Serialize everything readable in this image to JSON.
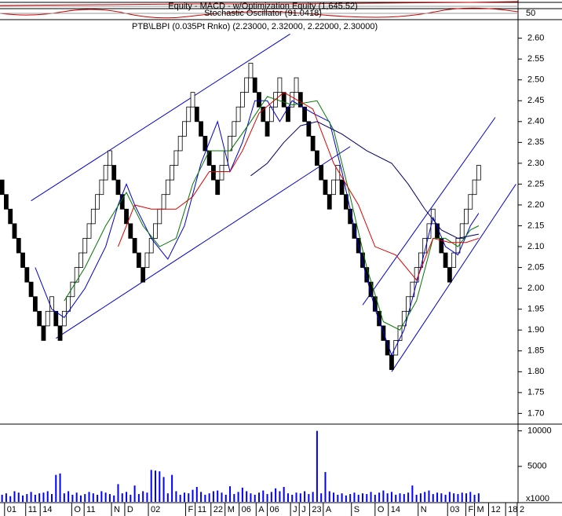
{
  "indicator_panels": [
    {
      "label": "Equity - MACD - w/Optimization Equity (1,645.52)"
    },
    {
      "label": "Stochastic Oscillator (91.0418)",
      "yticks": [
        50
      ]
    }
  ],
  "chart_data": [
    {
      "type": "renko",
      "title": "PTB\\LBPI (0.035Pt Rnko) (2.23000, 2.32000, 2.22000, 2.30000)",
      "up_color": "#ffffff",
      "down_color": "#000000",
      "xlim": [
        -0.5,
        124.5
      ],
      "ylim": [
        1.68,
        2.62
      ],
      "yticks": [
        {
          "value": 1.7,
          "label": "1.70"
        },
        {
          "value": 1.75,
          "label": "1.75"
        },
        {
          "value": 1.8,
          "label": "1.80"
        },
        {
          "value": 1.85,
          "label": "1.85"
        },
        {
          "value": 1.9,
          "label": "1.90"
        },
        {
          "value": 1.95,
          "label": "1.95"
        },
        {
          "value": 2,
          "label": "2.00"
        },
        {
          "value": 2.05,
          "label": "2.05"
        },
        {
          "value": 2.1,
          "label": "2.10"
        },
        {
          "value": 2.15,
          "label": "2.15"
        },
        {
          "value": 2.2,
          "label": "2.20"
        },
        {
          "value": 2.25,
          "label": "2.25"
        },
        {
          "value": 2.3,
          "label": "2.30"
        },
        {
          "value": 2.35,
          "label": "2.35"
        },
        {
          "value": 2.4,
          "label": "2.40"
        },
        {
          "value": 2.45,
          "label": "2.45"
        },
        {
          "value": 2.5,
          "label": "2.50"
        },
        {
          "value": 2.55,
          "label": "2.55"
        },
        {
          "value": 2.6,
          "label": "2.60"
        }
      ],
      "open": [
        2.26,
        2.225,
        2.19,
        2.155,
        2.12,
        2.085,
        2.05,
        2.015,
        1.98,
        1.945,
        1.91,
        1.91,
        1.945,
        1.945,
        1.91,
        1.91,
        1.945,
        1.98,
        2.015,
        2.05,
        2.085,
        2.12,
        2.155,
        2.19,
        2.225,
        2.26,
        2.295,
        2.295,
        2.26,
        2.225,
        2.19,
        2.155,
        2.12,
        2.085,
        2.05,
        2.05,
        2.085,
        2.12,
        2.155,
        2.19,
        2.225,
        2.26,
        2.295,
        2.33,
        2.365,
        2.4,
        2.435,
        2.435,
        2.4,
        2.365,
        2.33,
        2.295,
        2.26,
        2.26,
        2.295,
        2.33,
        2.365,
        2.4,
        2.435,
        2.47,
        2.505,
        2.505,
        2.47,
        2.435,
        2.4,
        2.4,
        2.435,
        2.47,
        2.47,
        2.435,
        2.435,
        2.47,
        2.47,
        2.435,
        2.4,
        2.365,
        2.33,
        2.295,
        2.26,
        2.225,
        2.225,
        2.26,
        2.26,
        2.225,
        2.19,
        2.155,
        2.12,
        2.085,
        2.05,
        2.015,
        1.98,
        1.945,
        1.91,
        1.875,
        1.84,
        1.84,
        1.875,
        1.91,
        1.945,
        1.98,
        2.015,
        2.05,
        2.085,
        2.12,
        2.155,
        2.155,
        2.12,
        2.085,
        2.05,
        2.05,
        2.085,
        2.12,
        2.155,
        2.19,
        2.225,
        2.26
      ],
      "close": [
        2.225,
        2.19,
        2.155,
        2.12,
        2.085,
        2.05,
        2.015,
        1.98,
        1.945,
        1.91,
        1.875,
        1.945,
        1.98,
        1.91,
        1.875,
        1.945,
        1.98,
        2.015,
        2.05,
        2.085,
        2.12,
        2.155,
        2.19,
        2.225,
        2.26,
        2.295,
        2.33,
        2.26,
        2.225,
        2.19,
        2.155,
        2.12,
        2.085,
        2.05,
        2.015,
        2.085,
        2.12,
        2.155,
        2.19,
        2.225,
        2.26,
        2.295,
        2.33,
        2.365,
        2.4,
        2.435,
        2.47,
        2.4,
        2.365,
        2.33,
        2.295,
        2.26,
        2.225,
        2.295,
        2.33,
        2.365,
        2.4,
        2.435,
        2.47,
        2.505,
        2.54,
        2.47,
        2.435,
        2.4,
        2.365,
        2.435,
        2.47,
        2.505,
        2.435,
        2.4,
        2.47,
        2.505,
        2.435,
        2.4,
        2.365,
        2.33,
        2.295,
        2.26,
        2.225,
        2.19,
        2.26,
        2.295,
        2.225,
        2.19,
        2.155,
        2.12,
        2.085,
        2.05,
        2.015,
        1.98,
        1.945,
        1.91,
        1.875,
        1.84,
        1.805,
        1.875,
        1.91,
        1.945,
        1.98,
        2.015,
        2.05,
        2.085,
        2.12,
        2.155,
        2.19,
        2.12,
        2.085,
        2.05,
        2.015,
        2.085,
        2.12,
        2.155,
        2.19,
        2.225,
        2.26,
        2.295
      ],
      "series": [
        {
          "color": "#0000cc",
          "x": [
            8,
            12,
            15,
            20,
            25,
            28,
            30,
            32,
            36,
            40,
            44,
            48,
            52,
            55,
            58,
            61,
            64,
            67,
            70,
            75,
            79,
            82,
            86,
            90,
            94,
            97,
            101,
            104,
            107,
            110,
            113,
            115
          ],
          "values": [
            2.05,
            1.95,
            1.93,
            2.0,
            2.1,
            2.2,
            2.25,
            2.2,
            2.12,
            2.07,
            2.15,
            2.3,
            2.4,
            2.28,
            2.35,
            2.45,
            2.45,
            2.4,
            2.45,
            2.42,
            2.4,
            2.28,
            2.1,
            1.95,
            1.84,
            1.9,
            2.05,
            2.17,
            2.1,
            2.08,
            2.15,
            2.18
          ]
        },
        {
          "color": "#007700",
          "x": [
            15,
            20,
            25,
            30,
            34,
            38,
            42,
            46,
            50,
            55,
            60,
            64,
            70,
            76,
            80,
            84,
            88,
            92,
            96,
            100,
            104,
            107,
            110,
            113,
            115
          ],
          "values": [
            1.97,
            2.05,
            2.15,
            2.23,
            2.15,
            2.1,
            2.12,
            2.25,
            2.33,
            2.33,
            2.4,
            2.46,
            2.44,
            2.45,
            2.38,
            2.22,
            2.05,
            1.92,
            1.9,
            1.97,
            2.12,
            2.12,
            2.1,
            2.14,
            2.15
          ]
        },
        {
          "color": "#dd0000",
          "x": [
            28,
            32,
            36,
            42,
            46,
            50,
            55,
            58,
            62,
            68,
            75,
            80,
            86,
            90,
            95,
            100,
            104,
            108,
            112,
            115
          ],
          "values": [
            2.1,
            2.2,
            2.19,
            2.19,
            2.22,
            2.28,
            2.28,
            2.33,
            2.42,
            2.47,
            2.43,
            2.3,
            2.2,
            2.1,
            2.08,
            2.02,
            2.12,
            2.11,
            2.11,
            2.12
          ]
        },
        {
          "color": "#000066",
          "x": [
            60,
            64,
            68,
            72,
            76,
            82,
            88,
            94,
            98,
            102,
            106,
            110,
            115
          ],
          "values": [
            2.27,
            2.3,
            2.35,
            2.39,
            2.4,
            2.37,
            2.33,
            2.3,
            2.25,
            2.19,
            2.14,
            2.12,
            2.13
          ]
        }
      ],
      "trendlines": [
        {
          "color": "#0000cc",
          "x": [
            7,
            69.5
          ],
          "values": [
            2.21,
            2.61
          ]
        },
        {
          "color": "#0000cc",
          "x": [
            13,
            84
          ],
          "values": [
            1.88,
            2.34
          ]
        },
        {
          "color": "#0000cc",
          "x": [
            87,
            119
          ],
          "values": [
            1.96,
            2.41
          ]
        },
        {
          "color": "#0000cc",
          "x": [
            94,
            124
          ],
          "values": [
            1.8,
            2.25
          ]
        }
      ]
    },
    {
      "type": "bar",
      "color": "#0000ff",
      "xlim": [
        -0.5,
        124.5
      ],
      "ylim": [
        0,
        10400
      ],
      "yticks": [
        5000,
        10000
      ],
      "y_unit_label": "x1000",
      "xticks": [
        {
          "value": 0.6,
          "label": "01"
        },
        {
          "value": 5.7,
          "label": "11"
        },
        {
          "value": 9.2,
          "label": "14"
        },
        {
          "value": 16.8,
          "label": "O"
        },
        {
          "value": 19.8,
          "label": "11"
        },
        {
          "value": 26.4,
          "label": "N"
        },
        {
          "value": 29.6,
          "label": "D"
        },
        {
          "value": 35.3,
          "label": "02"
        },
        {
          "value": 44.3,
          "label": "F"
        },
        {
          "value": 46.6,
          "label": "11"
        },
        {
          "value": 50.4,
          "label": "22"
        },
        {
          "value": 53.8,
          "label": "M"
        },
        {
          "value": 57.2,
          "label": "06"
        },
        {
          "value": 61.3,
          "label": "A"
        },
        {
          "value": 64,
          "label": "06"
        },
        {
          "value": 69.6,
          "label": "J"
        },
        {
          "value": 71.7,
          "label": "J"
        },
        {
          "value": 74.2,
          "label": "23"
        },
        {
          "value": 77.5,
          "label": "A"
        },
        {
          "value": 84.3,
          "label": "S"
        },
        {
          "value": 90,
          "label": "O"
        },
        {
          "value": 93.2,
          "label": "14"
        },
        {
          "value": 100.4,
          "label": "N"
        },
        {
          "value": 107.5,
          "label": "03"
        },
        {
          "value": 111.9,
          "label": "F"
        },
        {
          "value": 114,
          "label": "M"
        },
        {
          "value": 117.4,
          "label": "12"
        },
        {
          "value": 121.5,
          "label": "18"
        },
        {
          "value": 124.3,
          "label": "2"
        }
      ],
      "values": [
        1000,
        1200,
        800,
        1500,
        1300,
        900,
        1100,
        1400,
        1000,
        1200,
        1300,
        1500,
        1100,
        3800,
        4000,
        1200,
        1500,
        1000,
        1300,
        900,
        1100,
        1400,
        1200,
        1000,
        1500,
        1300,
        1100,
        900,
        2500,
        1200,
        1400,
        1000,
        2300,
        1100,
        1500,
        1300,
        4500,
        4400,
        4300,
        3500,
        1200,
        3800,
        1500,
        1000,
        1300,
        1200,
        1700,
        2100,
        1400,
        1000,
        1200,
        1500,
        1600,
        1300,
        1000,
        2200,
        1100,
        1400,
        2000,
        1500,
        1200,
        1000,
        1300,
        1600,
        1100,
        1400,
        1900,
        1500,
        2100,
        1200,
        1000,
        1300,
        1200,
        1500,
        1100,
        1400,
        10000,
        1200,
        4200,
        1500,
        1300,
        1000,
        1200,
        900,
        1100,
        1300,
        1000,
        1200,
        1100,
        1400,
        1000,
        1300,
        1600,
        1200,
        1400,
        1000,
        1200,
        1100,
        1300,
        2300,
        1000,
        1200,
        1400,
        1600,
        1100,
        1300,
        1200,
        1000,
        1400,
        1200,
        1100,
        1300,
        1200,
        1400,
        1000,
        1200
      ]
    }
  ]
}
